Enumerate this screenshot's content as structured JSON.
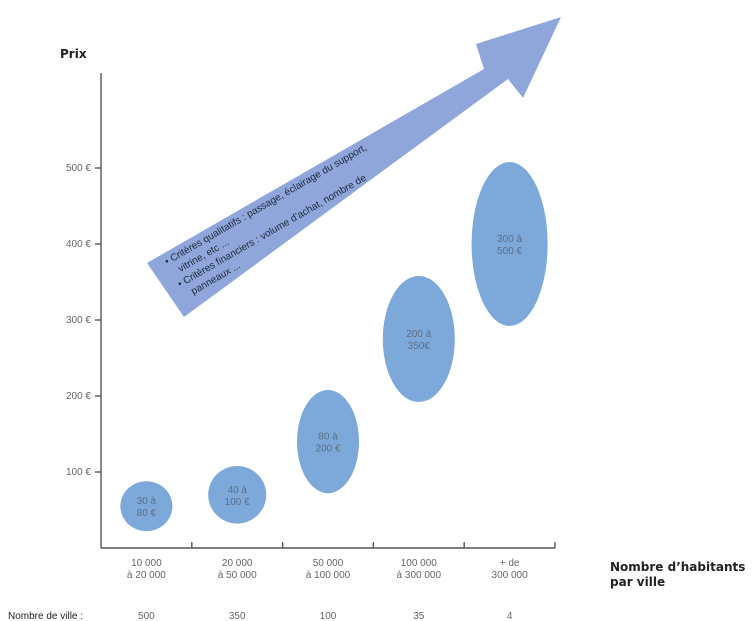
{
  "chart_data": {
    "type": "scatter",
    "ylabel": "Prix",
    "xlabel_lines": [
      "Nombre d’habitants",
      "par ville"
    ],
    "ylim": [
      0,
      650
    ],
    "y_ticks": [
      {
        "value": 100,
        "label": "100 €"
      },
      {
        "value": 200,
        "label": "200 €"
      },
      {
        "value": 300,
        "label": "300 €"
      },
      {
        "value": 400,
        "label": "400 €"
      },
      {
        "value": 500,
        "label": "500 €"
      }
    ],
    "categories": [
      {
        "lines": [
          "10 000",
          "à 20 000"
        ]
      },
      {
        "lines": [
          "20 000",
          "à 50 000"
        ]
      },
      {
        "lines": [
          "50 000",
          "à 100 000"
        ]
      },
      {
        "lines": [
          "100 000",
          "à 300 000"
        ]
      },
      {
        "lines": [
          "+ de",
          "300 000"
        ]
      }
    ],
    "price_ranges": [
      {
        "min": 30,
        "max": 80,
        "label_lines": [
          "30 à",
          "80 €"
        ],
        "color": "#7ca8da"
      },
      {
        "min": 40,
        "max": 100,
        "label_lines": [
          "40 à",
          "100 €"
        ],
        "color": "#7ca8da"
      },
      {
        "min": 80,
        "max": 200,
        "label_lines": [
          "80 à",
          "200 €"
        ],
        "color": "#7ca8da"
      },
      {
        "min": 200,
        "max": 350,
        "label_lines": [
          "200 à",
          "350€"
        ],
        "color": "#7ca8da"
      },
      {
        "min": 300,
        "max": 500,
        "label_lines": [
          "300 à",
          "500 €"
        ],
        "color": "#7ca8da"
      }
    ],
    "count_label": "Nombre de ville :",
    "city_counts": [
      "500",
      "350",
      "100",
      "35",
      "4"
    ],
    "arrow_color": "#8ea6d9",
    "arrow_text_lines": [
      "• Critères qualitatifs : passage, éclairage du support,",
      "vitrine, etc ...",
      "• Critères financiers : volume d’achat, nombre de",
      "panneaux ..."
    ]
  }
}
